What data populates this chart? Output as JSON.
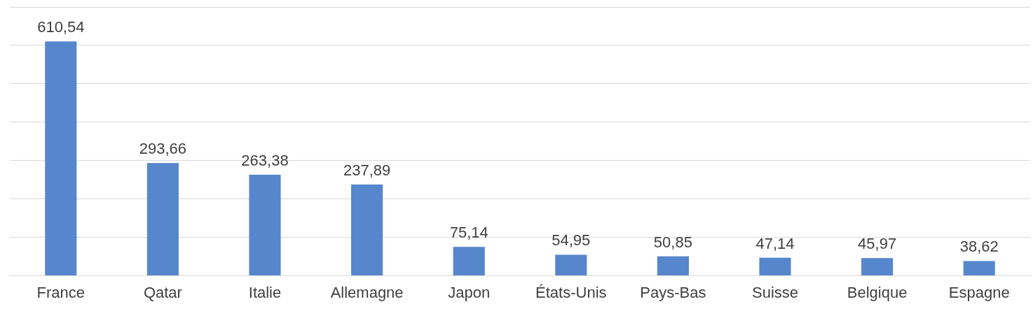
{
  "chart_data": {
    "type": "bar",
    "categories": [
      "France",
      "Qatar",
      "Italie",
      "Allemagne",
      "Japon",
      "États-Unis",
      "Pays-Bas",
      "Suisse",
      "Belgique",
      "Espagne"
    ],
    "values": [
      610.54,
      293.66,
      263.38,
      237.89,
      75.14,
      54.95,
      50.85,
      47.14,
      45.97,
      38.62
    ],
    "value_labels": [
      "610,54",
      "293,66",
      "263,38",
      "237,89",
      "75,14",
      "54,95",
      "50,85",
      "47,14",
      "45,97",
      "38,62"
    ],
    "color": "#5687cc",
    "ylim": [
      0,
      700
    ],
    "yticks": [
      {
        "value": 0,
        "label": null
      },
      {
        "value": 100,
        "label": null
      },
      {
        "value": 200,
        "label": null
      },
      {
        "value": 300,
        "label": null
      },
      {
        "value": 400,
        "label": null
      },
      {
        "value": 500,
        "label": null
      },
      {
        "value": 600,
        "label": null
      },
      {
        "value": 700,
        "label": null
      }
    ],
    "grid": "y",
    "legend": false,
    "tick_labels": "x"
  }
}
